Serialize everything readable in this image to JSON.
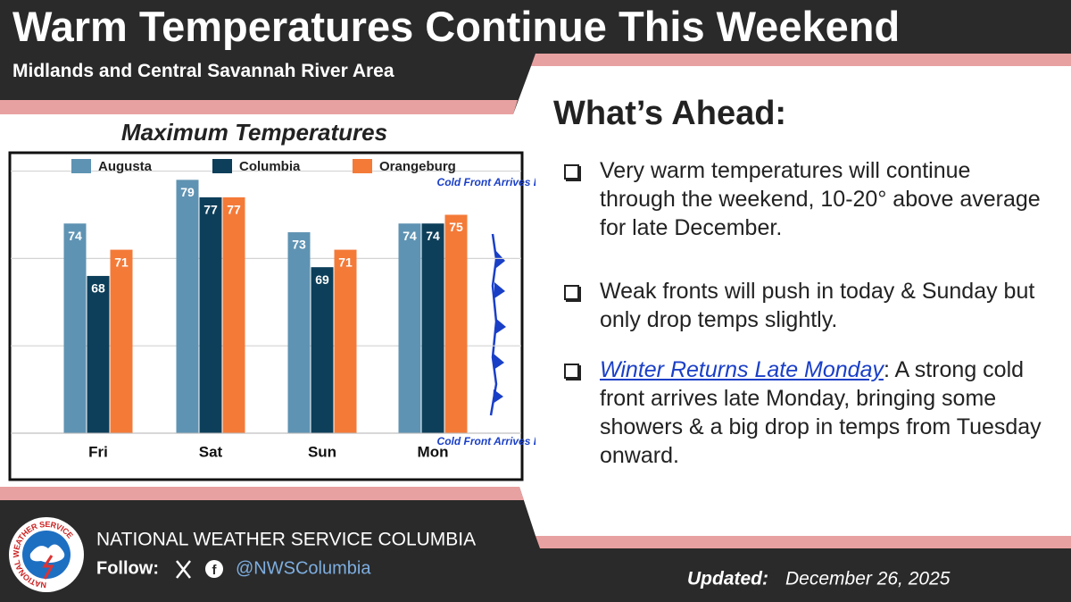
{
  "header": {
    "title": "Warm Temperatures Continue This Weekend",
    "subtitle": "Midlands and Central Savannah River Area"
  },
  "chart_data": {
    "type": "bar",
    "title": "Maximum Temperatures",
    "categories": [
      "Fri",
      "Sat",
      "Sun",
      "Mon"
    ],
    "series": [
      {
        "name": "Augusta",
        "color": "#5f93b3",
        "values": [
          74,
          79,
          73,
          74
        ]
      },
      {
        "name": "Columbia",
        "color": "#0d3f5a",
        "values": [
          68,
          77,
          69,
          74
        ]
      },
      {
        "name": "Orangeburg",
        "color": "#f47a38",
        "values": [
          71,
          77,
          71,
          75
        ]
      }
    ],
    "ylim": [
      50,
      82
    ],
    "yticks": [
      50,
      60,
      70,
      80
    ],
    "grid": true,
    "annotations": [
      "Cold Front Arrives Late",
      "Cold Front Arrives Late"
    ]
  },
  "ahead": {
    "title": "What’s Ahead:",
    "items": [
      {
        "text": "Very warm temperatures will continue through the weekend, 10-20° above average for late December."
      },
      {
        "text": "Weak fronts will push in today & Sunday but only drop temps slightly."
      },
      {
        "link": "Winter Returns Late Monday",
        "text": ": A strong cold front arrives late Monday, bringing some showers & a big drop in temps from Tuesday onward."
      }
    ]
  },
  "footer": {
    "logo": "NATIONAL WEATHER SERVICE",
    "office": "NATIONAL WEATHER SERVICE COLUMBIA",
    "follow": "Follow:",
    "handle": "@NWSColumbia",
    "updated_label": "Updated:",
    "updated": "December 26, 2025"
  }
}
